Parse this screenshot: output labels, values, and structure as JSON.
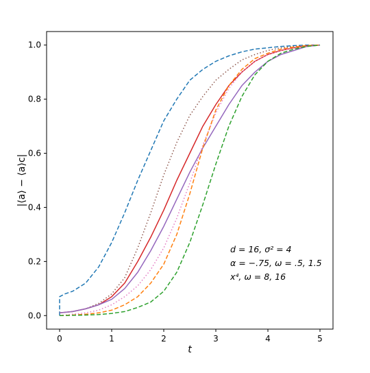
{
  "chart_data": {
    "type": "line",
    "title": "",
    "xlabel": "t",
    "ylabel": "|⟨a⟩ − ⟨a⟩c|",
    "xlim": [
      -0.25,
      5.25
    ],
    "ylim": [
      -0.05,
      1.05
    ],
    "xticks": [
      0,
      1,
      2,
      3,
      4,
      5
    ],
    "xtick_labels": [
      "0",
      "1",
      "2",
      "3",
      "4",
      "5"
    ],
    "yticks": [
      0.0,
      0.2,
      0.4,
      0.6,
      0.8,
      1.0
    ],
    "ytick_labels": [
      "0.0",
      "0.2",
      "0.4",
      "0.6",
      "0.8",
      "1.0"
    ],
    "grid": false,
    "legend": "none",
    "annotations": [
      "d = 16, σ² = 4",
      "α = −.75, ω = .5, 1.5",
      "x⁴, ω = 8, 16"
    ],
    "series": [
      {
        "color": "#1f77b4",
        "style": "dashed",
        "x": [
          0,
          0,
          0.1,
          0.25,
          0.5,
          0.75,
          1.0,
          1.25,
          1.5,
          1.75,
          2.0,
          2.25,
          2.5,
          2.75,
          3.0,
          3.25,
          3.5,
          3.75,
          4.0,
          4.25,
          4.5,
          4.75,
          5.0
        ],
        "y": [
          0.0,
          0.07,
          0.08,
          0.09,
          0.12,
          0.18,
          0.27,
          0.38,
          0.5,
          0.61,
          0.72,
          0.8,
          0.87,
          0.91,
          0.94,
          0.96,
          0.975,
          0.985,
          0.99,
          0.995,
          0.998,
          1.0,
          1.0
        ]
      },
      {
        "color": "#8c564b",
        "style": "dotted",
        "x": [
          0,
          0.25,
          0.5,
          0.75,
          1.0,
          1.25,
          1.5,
          1.75,
          2.0,
          2.25,
          2.5,
          2.75,
          3.0,
          3.25,
          3.5,
          3.75,
          4.0,
          4.25,
          4.5,
          4.75,
          5.0
        ],
        "y": [
          0.01,
          0.015,
          0.025,
          0.045,
          0.08,
          0.14,
          0.25,
          0.38,
          0.52,
          0.64,
          0.74,
          0.81,
          0.87,
          0.91,
          0.945,
          0.965,
          0.98,
          0.99,
          0.995,
          0.998,
          1.0
        ]
      },
      {
        "color": "#d62728",
        "style": "solid",
        "x": [
          0,
          0.25,
          0.5,
          0.75,
          1.0,
          1.25,
          1.5,
          1.75,
          2.0,
          2.25,
          2.5,
          2.75,
          3.0,
          3.25,
          3.5,
          3.75,
          4.0,
          4.25,
          4.5,
          4.75,
          5.0
        ],
        "y": [
          0.01,
          0.015,
          0.025,
          0.04,
          0.07,
          0.12,
          0.2,
          0.29,
          0.39,
          0.5,
          0.6,
          0.7,
          0.78,
          0.85,
          0.9,
          0.94,
          0.965,
          0.98,
          0.99,
          0.997,
          1.0
        ]
      },
      {
        "color": "#9467bd",
        "style": "solid",
        "x": [
          0,
          0.25,
          0.5,
          0.75,
          1.0,
          1.25,
          1.5,
          1.75,
          2.0,
          2.25,
          2.5,
          2.75,
          3.0,
          3.25,
          3.5,
          3.75,
          4.0,
          4.25,
          4.5,
          4.75,
          5.0
        ],
        "y": [
          0.01,
          0.015,
          0.025,
          0.04,
          0.06,
          0.1,
          0.16,
          0.24,
          0.33,
          0.43,
          0.53,
          0.62,
          0.7,
          0.78,
          0.85,
          0.9,
          0.94,
          0.965,
          0.98,
          0.995,
          1.0
        ]
      },
      {
        "color": "#e377c2",
        "style": "dotted",
        "x": [
          0,
          0.25,
          0.5,
          0.75,
          1.0,
          1.25,
          1.5,
          1.75,
          2.0,
          2.25,
          2.5,
          2.75,
          3.0,
          3.25,
          3.5,
          3.75,
          4.0,
          4.25,
          4.5,
          4.75,
          5.0
        ],
        "y": [
          0.0,
          0.005,
          0.01,
          0.02,
          0.04,
          0.07,
          0.11,
          0.17,
          0.25,
          0.36,
          0.49,
          0.63,
          0.75,
          0.84,
          0.9,
          0.94,
          0.965,
          0.98,
          0.99,
          0.997,
          1.0
        ]
      },
      {
        "color": "#ff7f0e",
        "style": "dashed",
        "x": [
          0,
          0.25,
          0.5,
          0.75,
          1.0,
          1.25,
          1.5,
          1.75,
          2.0,
          2.25,
          2.5,
          2.75,
          3.0,
          3.25,
          3.5,
          3.75,
          4.0,
          4.25,
          4.5,
          4.75,
          5.0
        ],
        "y": [
          0.0,
          0.002,
          0.005,
          0.01,
          0.02,
          0.04,
          0.07,
          0.12,
          0.19,
          0.3,
          0.45,
          0.62,
          0.76,
          0.85,
          0.91,
          0.95,
          0.97,
          0.985,
          0.993,
          0.998,
          1.0
        ]
      },
      {
        "color": "#2ca02c",
        "style": "dashed",
        "x": [
          0,
          0.25,
          0.5,
          0.75,
          1.0,
          1.25,
          1.5,
          1.75,
          2.0,
          2.25,
          2.5,
          2.75,
          3.0,
          3.25,
          3.5,
          3.75,
          4.0,
          4.25,
          4.5,
          4.75,
          5.0
        ],
        "y": [
          0.0,
          0.001,
          0.002,
          0.004,
          0.008,
          0.015,
          0.03,
          0.05,
          0.09,
          0.16,
          0.27,
          0.41,
          0.56,
          0.7,
          0.81,
          0.89,
          0.94,
          0.97,
          0.985,
          0.995,
          1.0
        ]
      }
    ]
  }
}
